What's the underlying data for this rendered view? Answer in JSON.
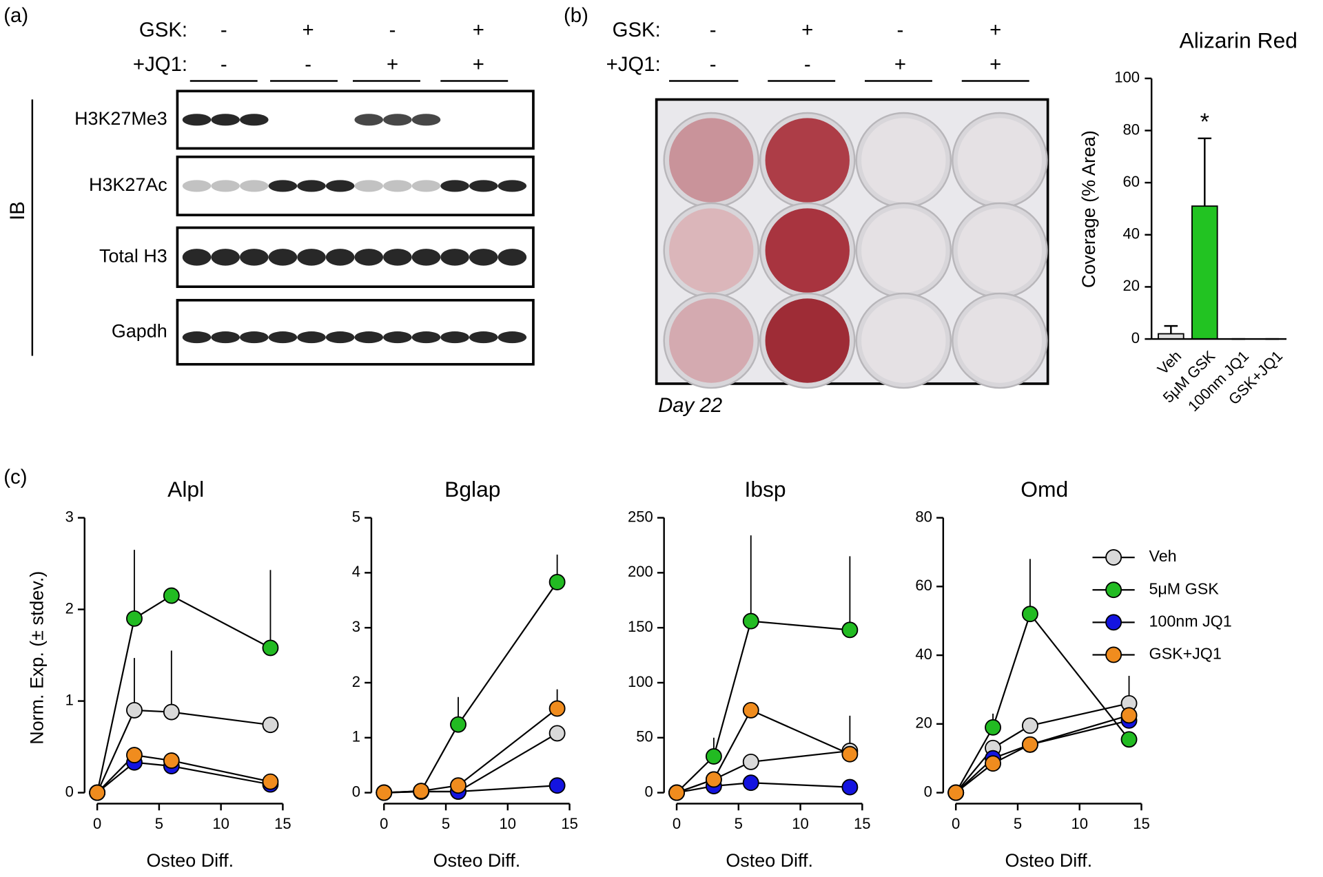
{
  "panel_labels": [
    "(a)",
    "(b)",
    "(c)"
  ],
  "blot": {
    "treatments": [
      {
        "label": "GSK:",
        "signs": [
          "-",
          "+",
          "-",
          "+"
        ]
      },
      {
        "label": "+JQ1:",
        "signs": [
          "-",
          "-",
          "+",
          "+"
        ]
      }
    ],
    "ib_label": "IB",
    "rows": [
      "H3K27Me3",
      "H3K27Ac",
      "Total H3",
      "Gapdh"
    ]
  },
  "plate": {
    "treatments": [
      {
        "label": "GSK:",
        "signs": [
          "-",
          "+",
          "-",
          "+"
        ]
      },
      {
        "label": "+JQ1:",
        "signs": [
          "-",
          "-",
          "+",
          "+"
        ]
      }
    ],
    "caption": "Day 22"
  },
  "chart_data": [
    {
      "type": "bar",
      "title": "Alizarin Red",
      "y_label": "Coverage (% Area)",
      "categories": [
        "Veh",
        "5μM GSK",
        "100nm JQ1",
        "GSK+JQ1"
      ],
      "values": [
        2,
        51,
        0,
        0
      ],
      "errors": [
        3,
        26,
        0,
        0
      ],
      "colors": [
        "#e0e0e0",
        "#22c322",
        "#22c322",
        "#22c322"
      ],
      "annotations": [
        {
          "text": "*",
          "x": "5μM GSK"
        }
      ],
      "ylim": [
        0,
        100
      ],
      "yticks": [
        0,
        20,
        40,
        60,
        80,
        100
      ]
    },
    {
      "type": "line",
      "title": "Alpl",
      "x_label": "Osteo Diff.",
      "y_label": "Norm. Exp. (± stdev.)",
      "x": [
        0,
        3,
        6,
        14
      ],
      "xlim": [
        0,
        15
      ],
      "xticks": [
        0,
        5,
        10,
        15
      ],
      "ylim": [
        0,
        3
      ],
      "yticks": [
        0,
        1,
        2,
        3
      ],
      "series": [
        {
          "color": "#d9d9d9",
          "values": [
            0,
            0.9,
            0.88,
            0.74
          ],
          "errors": [
            0,
            0.57,
            0.67,
            0.08
          ]
        },
        {
          "color": "#22bb22",
          "values": [
            0,
            1.9,
            2.15,
            1.58
          ],
          "errors": [
            0,
            0.75,
            0,
            0.85
          ]
        },
        {
          "color": "#1414e0",
          "values": [
            0,
            0.33,
            0.29,
            0.09
          ],
          "errors": [
            0,
            0,
            0,
            0
          ]
        },
        {
          "color": "#f08c1e",
          "values": [
            0,
            0.41,
            0.35,
            0.12
          ],
          "errors": [
            0,
            0,
            0,
            0
          ]
        }
      ]
    },
    {
      "type": "line",
      "title": "Bglap",
      "x_label": "Osteo Diff.",
      "x": [
        0,
        3,
        6,
        14
      ],
      "xlim": [
        0,
        15
      ],
      "xticks": [
        0,
        5,
        10,
        15
      ],
      "ylim": [
        0,
        5
      ],
      "yticks": [
        0,
        1,
        2,
        3,
        4,
        5
      ],
      "series": [
        {
          "color": "#d9d9d9",
          "values": [
            0,
            0.02,
            0.02,
            1.08
          ],
          "errors": [
            0,
            0,
            0,
            0.1
          ]
        },
        {
          "color": "#22bb22",
          "values": [
            0,
            0.03,
            1.24,
            3.83
          ],
          "errors": [
            0,
            0,
            0.5,
            0.5
          ]
        },
        {
          "color": "#1414e0",
          "values": [
            0,
            0.02,
            0.02,
            0.13
          ],
          "errors": [
            0,
            0,
            0,
            0
          ]
        },
        {
          "color": "#f08c1e",
          "values": [
            0,
            0.03,
            0.13,
            1.53
          ],
          "errors": [
            0,
            0,
            0,
            0.35
          ]
        }
      ]
    },
    {
      "type": "line",
      "title": "Ibsp",
      "x_label": "Osteo Diff.",
      "x": [
        0,
        3,
        6,
        14
      ],
      "xlim": [
        0,
        15
      ],
      "xticks": [
        0,
        5,
        10,
        15
      ],
      "ylim": [
        0,
        250
      ],
      "yticks": [
        0,
        50,
        100,
        150,
        200,
        250
      ],
      "series": [
        {
          "color": "#d9d9d9",
          "values": [
            0,
            12,
            28,
            38
          ],
          "errors": [
            0,
            0,
            0,
            32
          ]
        },
        {
          "color": "#22bb22",
          "values": [
            0,
            33,
            156,
            148
          ],
          "errors": [
            0,
            17,
            78,
            67
          ]
        },
        {
          "color": "#1414e0",
          "values": [
            0,
            6,
            9,
            5
          ],
          "errors": [
            0,
            0,
            0,
            0
          ]
        },
        {
          "color": "#f08c1e",
          "values": [
            0,
            12,
            75,
            35
          ],
          "errors": [
            0,
            0,
            0,
            0
          ]
        }
      ]
    },
    {
      "type": "line",
      "title": "Omd",
      "x_label": "Osteo Diff.",
      "legend": "right",
      "x": [
        0,
        3,
        6,
        14
      ],
      "xlim": [
        0,
        15
      ],
      "xticks": [
        0,
        5,
        10,
        15
      ],
      "ylim": [
        0,
        80
      ],
      "yticks": [
        0,
        20,
        40,
        60,
        80
      ],
      "series": [
        {
          "name": "Veh",
          "color": "#d9d9d9",
          "values": [
            0,
            13,
            19.5,
            26
          ],
          "errors": [
            0,
            0,
            0,
            8
          ]
        },
        {
          "name": "5μM GSK",
          "color": "#22bb22",
          "values": [
            0,
            19,
            52,
            15.5
          ],
          "errors": [
            0,
            4,
            16,
            0
          ]
        },
        {
          "name": "100nm JQ1",
          "color": "#1414e0",
          "values": [
            0,
            10,
            14,
            21
          ],
          "errors": [
            0,
            0,
            0,
            0
          ]
        },
        {
          "name": "GSK+JQ1",
          "color": "#f08c1e",
          "values": [
            0,
            8.5,
            14,
            22.5
          ],
          "errors": [
            0,
            0,
            0,
            0
          ]
        }
      ]
    }
  ]
}
